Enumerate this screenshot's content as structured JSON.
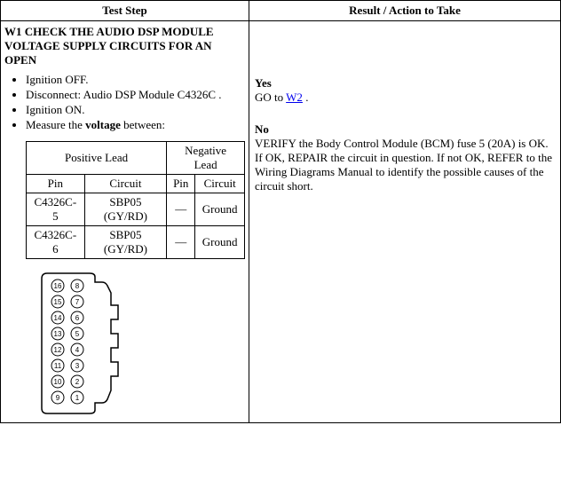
{
  "header": {
    "col1": "Test Step",
    "col2": "Result / Action to Take"
  },
  "step": {
    "title": "W1 CHECK THE AUDIO DSP MODULE VOLTAGE SUPPLY CIRCUITS FOR AN OPEN",
    "bullets": {
      "b1": "Ignition OFF.",
      "b2": "Disconnect: Audio DSP Module C4326C .",
      "b3": "Ignition ON.",
      "b4_pre": "Measure the ",
      "b4_bold": "voltage",
      "b4_post": " between:"
    }
  },
  "leads": {
    "pos_header": "Positive Lead",
    "neg_header": "Negative Lead",
    "pin_h": "Pin",
    "circuit_h": "Circuit",
    "r1": {
      "pos_pin": "C4326C-5",
      "pos_circ": "SBP05 (GY/RD)",
      "neg_pin": "—",
      "neg_circ": "Ground"
    },
    "r2": {
      "pos_pin": "C4326C-6",
      "pos_circ": "SBP05 (GY/RD)",
      "neg_pin": "—",
      "neg_circ": "Ground"
    }
  },
  "result": {
    "yes_label": "Yes",
    "yes_pre": "GO to ",
    "yes_link": "W2",
    "yes_post": " .",
    "no_label": "No",
    "no_text": "VERIFY the Body Control Module (BCM) fuse 5 (20A) is OK. If OK, REPAIR the circuit in question. If not OK, REFER to the Wiring Diagrams Manual to identify the possible causes of the circuit short."
  },
  "connector": {
    "pins_left": [
      "16",
      "15",
      "14",
      "13",
      "12",
      "11",
      "10",
      "9"
    ],
    "pins_right": [
      "8",
      "7",
      "6",
      "5",
      "4",
      "3",
      "2",
      "1"
    ],
    "stroke": "#000000",
    "fill": "#ffffff",
    "label_fontsize": 8
  }
}
